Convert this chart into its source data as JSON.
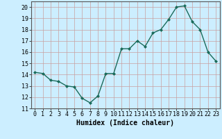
{
  "x": [
    0,
    1,
    2,
    3,
    4,
    5,
    6,
    7,
    8,
    9,
    10,
    11,
    12,
    13,
    14,
    15,
    16,
    17,
    18,
    19,
    20,
    21,
    22,
    23
  ],
  "y": [
    14.2,
    14.1,
    13.5,
    13.4,
    13.0,
    12.9,
    11.9,
    11.5,
    12.1,
    14.1,
    14.1,
    16.3,
    16.3,
    17.0,
    16.5,
    17.7,
    18.0,
    18.9,
    20.0,
    20.1,
    18.7,
    18.0,
    16.0,
    15.2
  ],
  "line_color": "#1a6b5a",
  "marker": "D",
  "marker_size": 2.0,
  "bg_color": "#cceeff",
  "grid_color_major": "#c8a0a0",
  "grid_color_minor": "#c8a0a0",
  "xlabel": "Humidex (Indice chaleur)",
  "xlabel_fontsize": 7,
  "ylim": [
    11,
    20.5
  ],
  "xlim": [
    -0.5,
    23.5
  ],
  "yticks": [
    11,
    12,
    13,
    14,
    15,
    16,
    17,
    18,
    19,
    20
  ],
  "xticks": [
    0,
    1,
    2,
    3,
    4,
    5,
    6,
    7,
    8,
    9,
    10,
    11,
    12,
    13,
    14,
    15,
    16,
    17,
    18,
    19,
    20,
    21,
    22,
    23
  ],
  "xtick_labels": [
    "0",
    "1",
    "2",
    "3",
    "4",
    "5",
    "6",
    "7",
    "8",
    "9",
    "10",
    "11",
    "12",
    "13",
    "14",
    "15",
    "16",
    "17",
    "18",
    "19",
    "20",
    "21",
    "22",
    "23"
  ],
  "line_width": 1.0,
  "tick_fontsize": 6.0,
  "spine_color": "#555555"
}
